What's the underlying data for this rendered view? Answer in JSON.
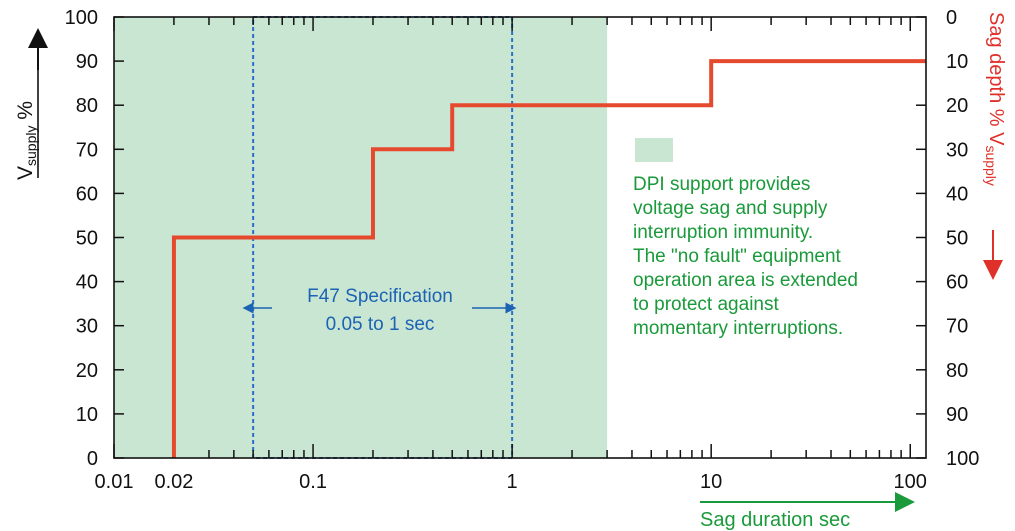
{
  "chart_data": {
    "type": "line",
    "x_scale": "log",
    "xlim": [
      0.01,
      120
    ],
    "ylim": [
      0,
      100
    ],
    "x_tick_labels": [
      "0.01",
      "0.02",
      "0.1",
      "1",
      "10",
      "100"
    ],
    "x_tick_values": [
      0.01,
      0.02,
      0.1,
      1,
      10,
      100
    ],
    "y_tick_labels": [
      "0",
      "10",
      "20",
      "30",
      "40",
      "50",
      "60",
      "70",
      "80",
      "90",
      "100"
    ],
    "y2_tick_labels": [
      "100",
      "90",
      "80",
      "70",
      "60",
      "50",
      "40",
      "30",
      "20",
      "10",
      "0"
    ],
    "ylabel_main": "V",
    "ylabel_sub": "supply",
    "ylabel_suffix": " %",
    "y2label": "Sag depth % V",
    "y2label_sub": "supply",
    "xlabel": "Sag duration sec",
    "grid": false,
    "series": [
      {
        "color": "#e64a2e",
        "points": [
          [
            0.02,
            0
          ],
          [
            0.02,
            50
          ],
          [
            0.2,
            50
          ],
          [
            0.2,
            70
          ],
          [
            0.5,
            70
          ],
          [
            0.5,
            80
          ],
          [
            10,
            80
          ],
          [
            10,
            90
          ],
          [
            120,
            90
          ]
        ]
      }
    ],
    "shaded_region": {
      "x": [
        0.01,
        3
      ],
      "y": [
        0,
        100
      ],
      "color": "#c9e6d3"
    },
    "spec_box": {
      "x": [
        0.05,
        1
      ],
      "y": [
        0,
        100
      ],
      "color": "#2a6fc9"
    },
    "spec_label": [
      "F47 Specification",
      "0.05 to 1 sec"
    ],
    "note_lines": [
      "DPI support provides",
      "voltage sag and supply",
      "interruption immunity.",
      "The \"no fault\" equipment",
      "operation area is extended",
      "to protect against",
      "momentary interruptions."
    ],
    "colors": {
      "ride_through_curve": "#e64a2e",
      "dpi_band": "#c9e6d3",
      "f47_box": "#2a6fc9",
      "note_text": "#1a9a3a",
      "axis2": "#e0302a"
    }
  }
}
